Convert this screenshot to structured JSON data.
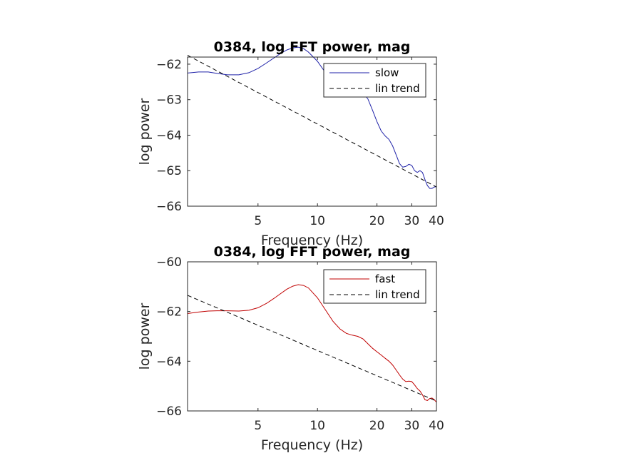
{
  "chart_data": [
    {
      "type": "line",
      "title": "0384, log FFT power, mag",
      "xlabel": "Frequency (Hz)",
      "ylabel": "log power",
      "xscale": "log",
      "xlim": [
        2.2,
        40
      ],
      "ylim": [
        -66,
        -61.8
      ],
      "xticks": [
        5,
        10,
        20,
        30,
        40
      ],
      "xtick_labels": [
        "5",
        "10",
        "20",
        "30",
        "40"
      ],
      "yticks": [
        -66,
        -65,
        -64,
        -63,
        -62
      ],
      "ytick_labels": [
        "−66",
        "−65",
        "−64",
        "−63",
        "−62"
      ],
      "grid": false,
      "legend_position": "top-right",
      "series": [
        {
          "name": "slow",
          "color": "#1f22a8",
          "style": "solid",
          "points": [
            [
              2.2,
              -62.25
            ],
            [
              2.5,
              -62.22
            ],
            [
              2.8,
              -62.22
            ],
            [
              3.1,
              -62.26
            ],
            [
              3.5,
              -62.3
            ],
            [
              4.0,
              -62.3
            ],
            [
              4.5,
              -62.24
            ],
            [
              5.0,
              -62.12
            ],
            [
              5.5,
              -61.97
            ],
            [
              6.0,
              -61.83
            ],
            [
              6.5,
              -61.7
            ],
            [
              7.0,
              -61.6
            ],
            [
              7.5,
              -61.54
            ],
            [
              8.0,
              -61.52
            ],
            [
              8.5,
              -61.56
            ],
            [
              9.0,
              -61.66
            ],
            [
              10.0,
              -61.92
            ],
            [
              11.0,
              -62.25
            ],
            [
              12.0,
              -62.58
            ],
            [
              13.0,
              -62.8
            ],
            [
              14.0,
              -62.9
            ],
            [
              15.0,
              -62.86
            ],
            [
              16.0,
              -62.78
            ],
            [
              17.0,
              -62.8
            ],
            [
              18.0,
              -62.98
            ],
            [
              19.0,
              -63.3
            ],
            [
              20.0,
              -63.62
            ],
            [
              21.0,
              -63.88
            ],
            [
              22.0,
              -64.02
            ],
            [
              23.0,
              -64.12
            ],
            [
              24.0,
              -64.3
            ],
            [
              25.0,
              -64.55
            ],
            [
              26.0,
              -64.8
            ],
            [
              27.0,
              -64.9
            ],
            [
              28.0,
              -64.88
            ],
            [
              29.0,
              -64.82
            ],
            [
              30.0,
              -64.85
            ],
            [
              31.0,
              -65.0
            ],
            [
              32.0,
              -65.05
            ],
            [
              33.0,
              -65.0
            ],
            [
              34.0,
              -65.05
            ],
            [
              35.0,
              -65.25
            ],
            [
              36.0,
              -65.42
            ],
            [
              37.0,
              -65.5
            ],
            [
              38.0,
              -65.5
            ],
            [
              39.0,
              -65.46
            ],
            [
              40.0,
              -65.45
            ]
          ]
        },
        {
          "name": "lin trend",
          "color": "#000000",
          "style": "dashed",
          "points": [
            [
              2.2,
              -61.75
            ],
            [
              40.0,
              -65.46
            ]
          ]
        }
      ]
    },
    {
      "type": "line",
      "title": "0384, log FFT power, mag",
      "xlabel": "Frequency (Hz)",
      "ylabel": "log power",
      "xscale": "log",
      "xlim": [
        2.2,
        40
      ],
      "ylim": [
        -66,
        -60
      ],
      "xticks": [
        5,
        10,
        20,
        30,
        40
      ],
      "xtick_labels": [
        "5",
        "10",
        "20",
        "30",
        "40"
      ],
      "yticks": [
        -66,
        -64,
        -62,
        -60
      ],
      "ytick_labels": [
        "−66",
        "−64",
        "−62",
        "−60"
      ],
      "grid": false,
      "legend_position": "top-right",
      "series": [
        {
          "name": "fast",
          "color": "#c00000",
          "style": "solid",
          "points": [
            [
              2.2,
              -62.08
            ],
            [
              2.5,
              -62.02
            ],
            [
              2.8,
              -61.98
            ],
            [
              3.1,
              -61.97
            ],
            [
              3.5,
              -61.97
            ],
            [
              4.0,
              -61.98
            ],
            [
              4.5,
              -61.95
            ],
            [
              5.0,
              -61.85
            ],
            [
              5.5,
              -61.68
            ],
            [
              6.0,
              -61.48
            ],
            [
              6.5,
              -61.28
            ],
            [
              7.0,
              -61.1
            ],
            [
              7.5,
              -60.98
            ],
            [
              8.0,
              -60.92
            ],
            [
              8.5,
              -60.95
            ],
            [
              9.0,
              -61.05
            ],
            [
              10.0,
              -61.45
            ],
            [
              11.0,
              -61.95
            ],
            [
              12.0,
              -62.4
            ],
            [
              13.0,
              -62.7
            ],
            [
              14.0,
              -62.88
            ],
            [
              15.0,
              -62.95
            ],
            [
              16.0,
              -63.0
            ],
            [
              17.0,
              -63.1
            ],
            [
              18.0,
              -63.3
            ],
            [
              19.0,
              -63.48
            ],
            [
              20.0,
              -63.62
            ],
            [
              21.0,
              -63.75
            ],
            [
              22.0,
              -63.88
            ],
            [
              23.0,
              -64.0
            ],
            [
              24.0,
              -64.15
            ],
            [
              25.0,
              -64.35
            ],
            [
              26.0,
              -64.55
            ],
            [
              27.0,
              -64.72
            ],
            [
              28.0,
              -64.82
            ],
            [
              29.0,
              -64.8
            ],
            [
              30.0,
              -64.82
            ],
            [
              31.0,
              -64.95
            ],
            [
              32.0,
              -65.1
            ],
            [
              33.0,
              -65.2
            ],
            [
              34.0,
              -65.35
            ],
            [
              35.0,
              -65.55
            ],
            [
              36.0,
              -65.58
            ],
            [
              37.0,
              -65.5
            ],
            [
              38.0,
              -65.48
            ],
            [
              39.0,
              -65.55
            ],
            [
              40.0,
              -65.65
            ]
          ]
        },
        {
          "name": "lin trend",
          "color": "#000000",
          "style": "dashed",
          "points": [
            [
              2.2,
              -61.35
            ],
            [
              40.0,
              -65.6
            ]
          ]
        }
      ]
    }
  ]
}
